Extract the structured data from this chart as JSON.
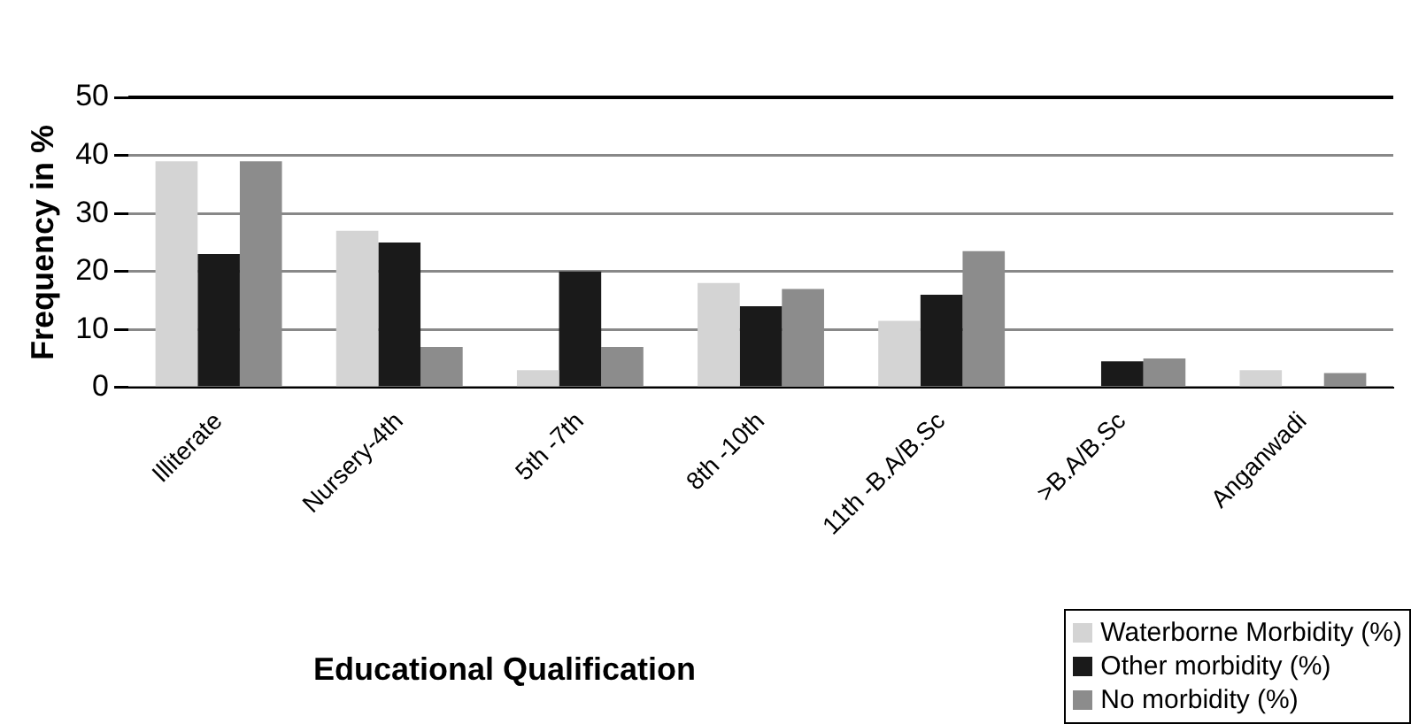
{
  "chart_data": {
    "type": "bar",
    "xlabel": "Educational Qualification",
    "ylabel": "Frequency in %",
    "categories": [
      "Illiterate",
      "Nursery-4th",
      "5th -7th",
      "8th -10th",
      "11th -B.A/B.Sc",
      ">B.A/B.Sc",
      "Anganwadi"
    ],
    "series": [
      {
        "name": "Waterborne Morbidity (%)",
        "color": "#d4d4d4",
        "values": [
          39,
          27,
          3,
          18,
          11.5,
          0,
          3
        ]
      },
      {
        "name": "Other morbidity (%)",
        "color": "#1a1a1a",
        "values": [
          23,
          25,
          20,
          14,
          16,
          4.5,
          0
        ]
      },
      {
        "name": "No morbidity (%)",
        "color": "#8c8c8c",
        "values": [
          39,
          7,
          7,
          17,
          23.5,
          5,
          2.5
        ]
      }
    ],
    "ylim": [
      0,
      50
    ],
    "yticks": [
      0,
      10,
      20,
      30,
      40,
      50
    ],
    "grid": "y",
    "legend": "bottom right"
  }
}
